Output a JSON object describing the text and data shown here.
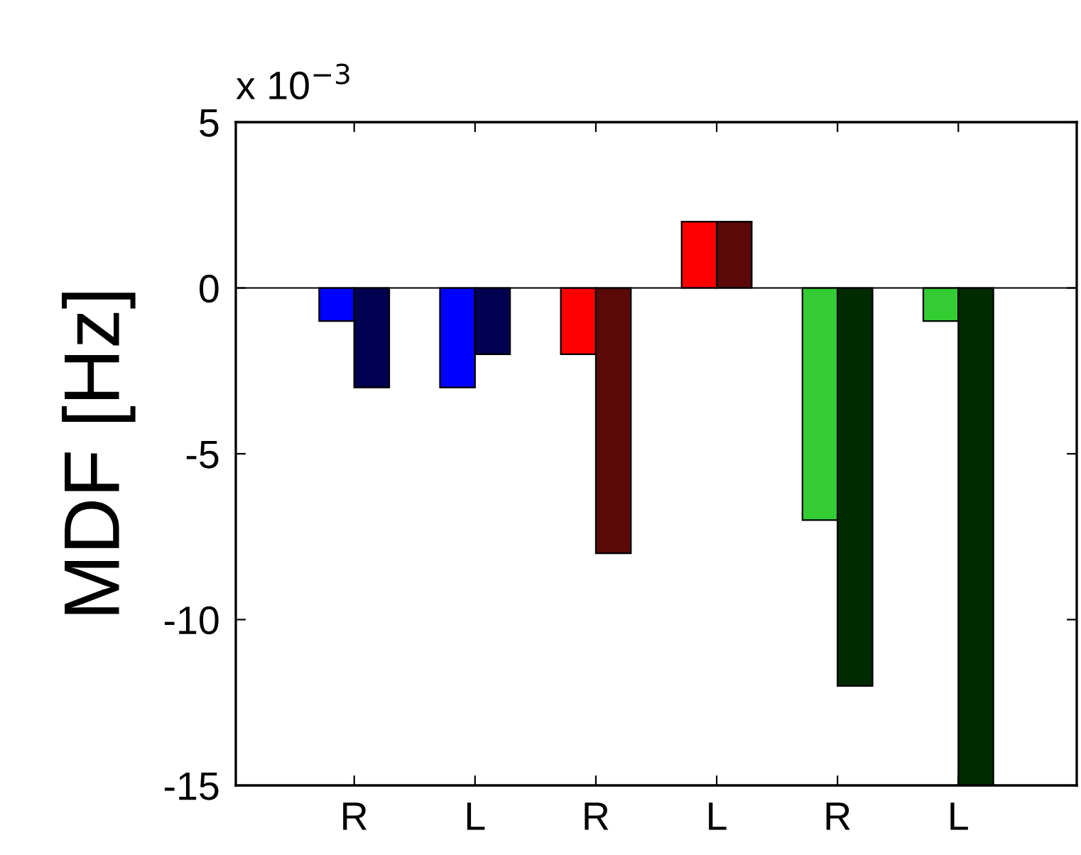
{
  "chart_data": {
    "type": "bar",
    "ylabel": "MDF [Hz]",
    "annotations": [
      "x 10$^{−3}$"
    ],
    "categories": [
      "R",
      "L",
      "R",
      "L",
      "R",
      "L"
    ],
    "series": [
      {
        "colors": [
          "#0000ff",
          "#0000ff",
          "#ff0000",
          "#ff0000",
          "#33cc33",
          "#33cc33"
        ],
        "values": [
          -1,
          -3,
          -2,
          2,
          -7,
          -1
        ]
      },
      {
        "colors": [
          "#000050",
          "#000050",
          "#5a0808",
          "#5a0808",
          "#002a00",
          "#002a00"
        ],
        "values": [
          -3,
          -2,
          -8,
          2,
          -12,
          -15
        ]
      }
    ],
    "ylim": [
      -15,
      5
    ],
    "yticks": [
      -15,
      -10,
      -5,
      0,
      5
    ],
    "ref_lines": [
      {
        "axis": "y",
        "value": 0,
        "color": "#000000"
      }
    ],
    "grid": false
  }
}
